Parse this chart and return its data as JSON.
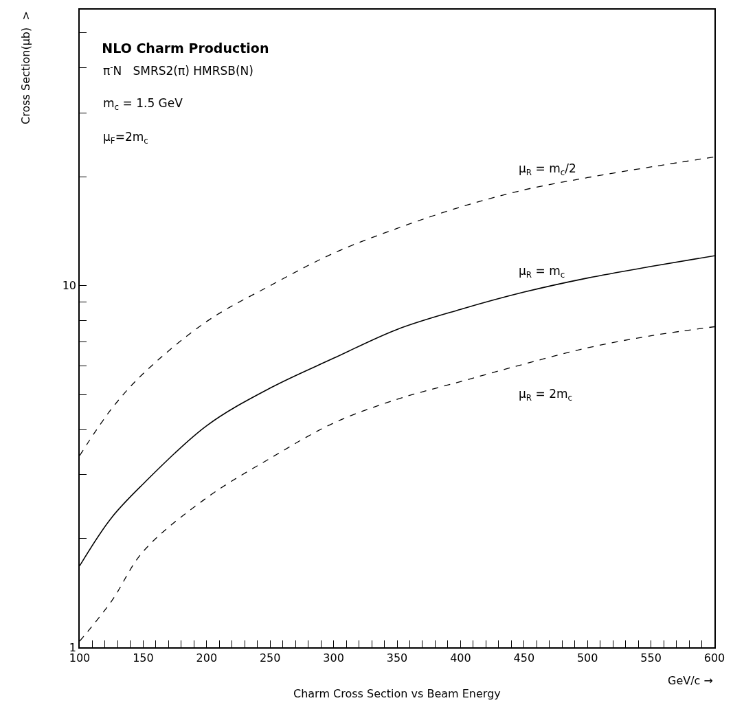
{
  "chart_data": {
    "type": "line",
    "title": "NLO Charm Production",
    "xlabel": "GeV/c →",
    "ylabel": "Cross Section(μb)  >",
    "annotations": [
      "π$^{-}$N   SMRS2(π) HMRSB(N)",
      "m$_{c}$ = 1.5 GeV",
      "μ$_{F}$=2m$_{c}$",
      "Charm Cross Section vs Beam Energy"
    ],
    "x": [
      100,
      125,
      150,
      200,
      250,
      300,
      350,
      400,
      450,
      500,
      550,
      600
    ],
    "series": [
      {
        "name": "μ$_{R}$ = m$_{c}$/2",
        "color": "#000000",
        "line_style": "dashed",
        "values": [
          3.39,
          4.56,
          5.71,
          7.96,
          10.0,
          12.3,
          14.4,
          16.5,
          18.4,
          19.9,
          21.3,
          22.7
        ]
      },
      {
        "name": "μ$_{R}$ = m$_{c}$",
        "color": "#000000",
        "line_style": "solid",
        "values": [
          1.68,
          2.28,
          2.83,
          4.1,
          5.21,
          6.3,
          7.57,
          8.6,
          9.6,
          10.5,
          11.3,
          12.1
        ]
      },
      {
        "name": "μ$_{R}$ = 2m$_{c}$",
        "color": "#000000",
        "line_style": "dashed",
        "values": [
          1.04,
          1.34,
          1.84,
          2.59,
          3.33,
          4.17,
          4.85,
          5.43,
          6.07,
          6.73,
          7.27,
          7.7
        ]
      }
    ],
    "log": "y",
    "legend": false,
    "marker": "none",
    "xlim": [
      100,
      600
    ],
    "xticks": [
      100,
      {
        "value": 110,
        "label": null
      },
      {
        "value": 120,
        "label": null
      },
      {
        "value": 130,
        "label": null
      },
      {
        "value": 140,
        "label": null
      },
      150,
      {
        "value": 160,
        "label": null
      },
      {
        "value": 170,
        "label": null
      },
      {
        "value": 180,
        "label": null
      },
      {
        "value": 190,
        "label": null
      },
      200,
      {
        "value": 210,
        "label": null
      },
      {
        "value": 220,
        "label": null
      },
      {
        "value": 230,
        "label": null
      },
      {
        "value": 240,
        "label": null
      },
      250,
      {
        "value": 260,
        "label": null
      },
      {
        "value": 270,
        "label": null
      },
      {
        "value": 280,
        "label": null
      },
      {
        "value": 290,
        "label": null
      },
      300,
      {
        "value": 310,
        "label": null
      },
      {
        "value": 320,
        "label": null
      },
      {
        "value": 330,
        "label": null
      },
      {
        "value": 340,
        "label": null
      },
      350,
      {
        "value": 360,
        "label": null
      },
      {
        "value": 370,
        "label": null
      },
      {
        "value": 380,
        "label": null
      },
      {
        "value": 390,
        "label": null
      },
      400,
      {
        "value": 410,
        "label": null
      },
      {
        "value": 420,
        "label": null
      },
      {
        "value": 430,
        "label": null
      },
      {
        "value": 440,
        "label": null
      },
      450,
      {
        "value": 460,
        "label": null
      },
      {
        "value": 470,
        "label": null
      },
      {
        "value": 480,
        "label": null
      },
      {
        "value": 490,
        "label": null
      },
      500,
      {
        "value": 510,
        "label": null
      },
      {
        "value": 520,
        "label": null
      },
      {
        "value": 530,
        "label": null
      },
      {
        "value": 540,
        "label": null
      },
      550,
      {
        "value": 560,
        "label": null
      },
      {
        "value": 570,
        "label": null
      },
      {
        "value": 580,
        "label": null
      },
      {
        "value": 590,
        "label": null
      },
      600
    ],
    "ylim": [
      1,
      58
    ],
    "yticks": [
      1,
      {
        "value": 2,
        "label": null
      },
      {
        "value": 3,
        "label": null
      },
      {
        "value": 4,
        "label": null
      },
      {
        "value": 5,
        "label": null
      },
      {
        "value": 6,
        "label": null
      },
      {
        "value": 7,
        "label": null
      },
      {
        "value": 8,
        "label": null
      },
      {
        "value": 9,
        "label": null
      },
      10,
      {
        "value": 20,
        "label": null
      },
      {
        "value": 30,
        "label": null
      },
      {
        "value": 40,
        "label": null
      },
      {
        "value": 50,
        "label": null
      }
    ]
  }
}
